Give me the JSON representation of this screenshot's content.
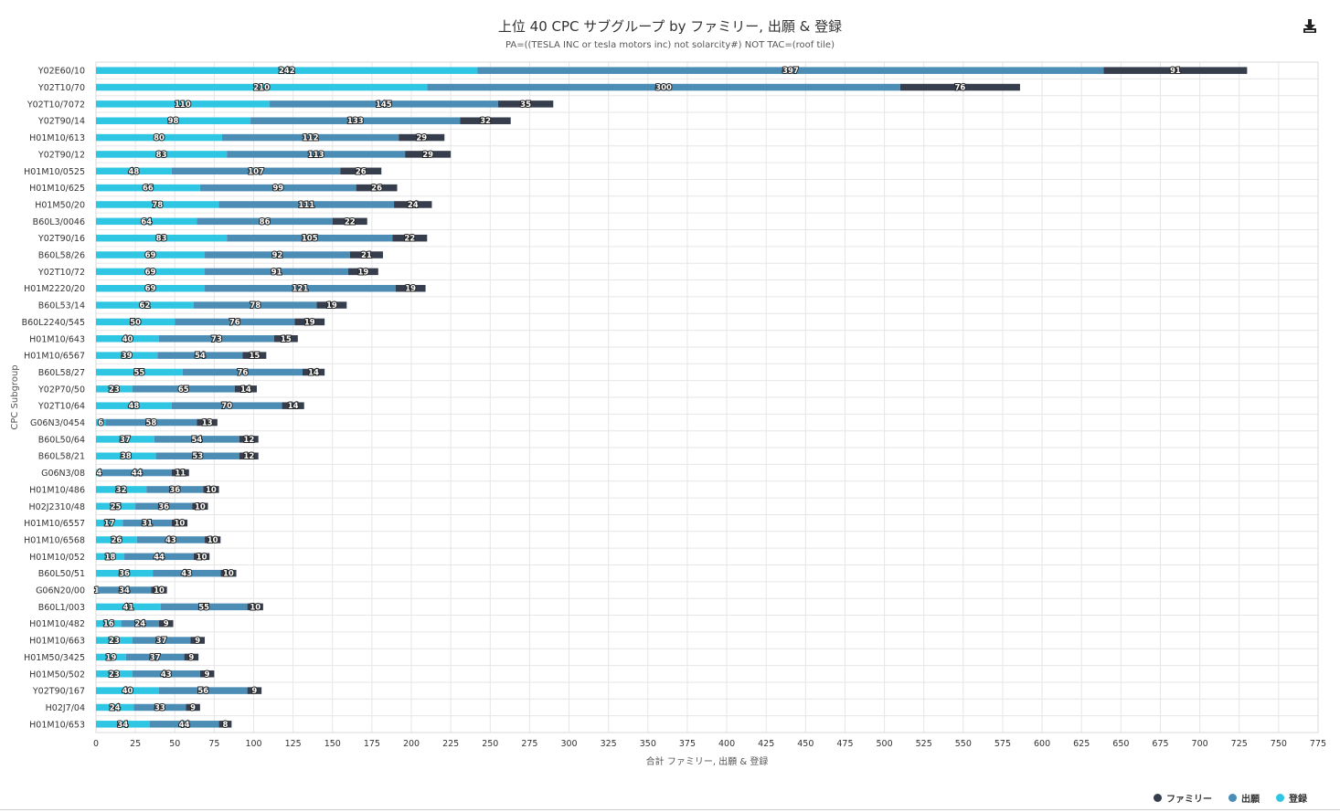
{
  "chart_data": {
    "type": "bar",
    "orientation": "horizontal",
    "stacked": true,
    "title": "上位 40 CPC サブグループ by ファミリー, 出願 & 登録",
    "subtitle": "PA=((TESLA INC or tesla motors inc) not solarcity#) NOT TAC=(roof tile)",
    "xlabel": "合計 ファミリー, 出願 & 登録",
    "ylabel": "CPC Subgroup",
    "xlim": [
      0,
      775
    ],
    "xticks": [
      0,
      25,
      50,
      75,
      100,
      125,
      150,
      175,
      200,
      225,
      250,
      275,
      300,
      325,
      350,
      375,
      400,
      425,
      450,
      475,
      500,
      525,
      550,
      575,
      600,
      625,
      650,
      675,
      700,
      725,
      750,
      775
    ],
    "grid": true,
    "legend_position": "bottom-right",
    "categories": [
      "Y02E60/10",
      "Y02T10/70",
      "Y02T10/7072",
      "Y02T90/14",
      "H01M10/613",
      "Y02T90/12",
      "H01M10/0525",
      "H01M10/625",
      "H01M50/20",
      "B60L3/0046",
      "Y02T90/16",
      "B60L58/26",
      "Y02T10/72",
      "H01M2220/20",
      "B60L53/14",
      "B60L2240/545",
      "H01M10/643",
      "H01M10/6567",
      "B60L58/27",
      "Y02P70/50",
      "Y02T10/64",
      "G06N3/0454",
      "B60L50/64",
      "B60L58/21",
      "G06N3/08",
      "H01M10/486",
      "H02J2310/48",
      "H01M10/6557",
      "H01M10/6568",
      "H01M10/052",
      "B60L50/51",
      "G06N20/00",
      "B60L1/003",
      "H01M10/482",
      "H01M10/663",
      "H01M50/3425",
      "H01M50/502",
      "Y02T90/167",
      "H02J7/04",
      "H01M10/653"
    ],
    "series": [
      {
        "name": "登録",
        "color": "#2ec6e3",
        "values": [
          242,
          210,
          110,
          98,
          80,
          83,
          48,
          66,
          78,
          64,
          83,
          69,
          69,
          69,
          62,
          50,
          40,
          39,
          55,
          23,
          48,
          6,
          37,
          38,
          4,
          32,
          25,
          17,
          26,
          18,
          36,
          1,
          41,
          16,
          23,
          19,
          23,
          40,
          24,
          34
        ]
      },
      {
        "name": "出願",
        "color": "#4b8db5",
        "values": [
          397,
          300,
          145,
          133,
          112,
          113,
          107,
          99,
          111,
          86,
          105,
          92,
          91,
          121,
          78,
          76,
          73,
          54,
          76,
          65,
          70,
          58,
          54,
          53,
          44,
          36,
          36,
          31,
          43,
          44,
          43,
          34,
          55,
          24,
          37,
          37,
          43,
          56,
          33,
          44
        ]
      },
      {
        "name": "ファミリー",
        "color": "#363e4d",
        "values": [
          91,
          76,
          35,
          32,
          29,
          29,
          26,
          26,
          24,
          22,
          22,
          21,
          19,
          19,
          19,
          19,
          15,
          15,
          14,
          14,
          14,
          13,
          12,
          12,
          11,
          10,
          10,
          10,
          10,
          10,
          10,
          10,
          10,
          9,
          9,
          9,
          9,
          9,
          9,
          8
        ]
      }
    ],
    "legend_order": [
      "ファミリー",
      "出願",
      "登録"
    ]
  },
  "icons": {
    "download": "download-icon"
  }
}
